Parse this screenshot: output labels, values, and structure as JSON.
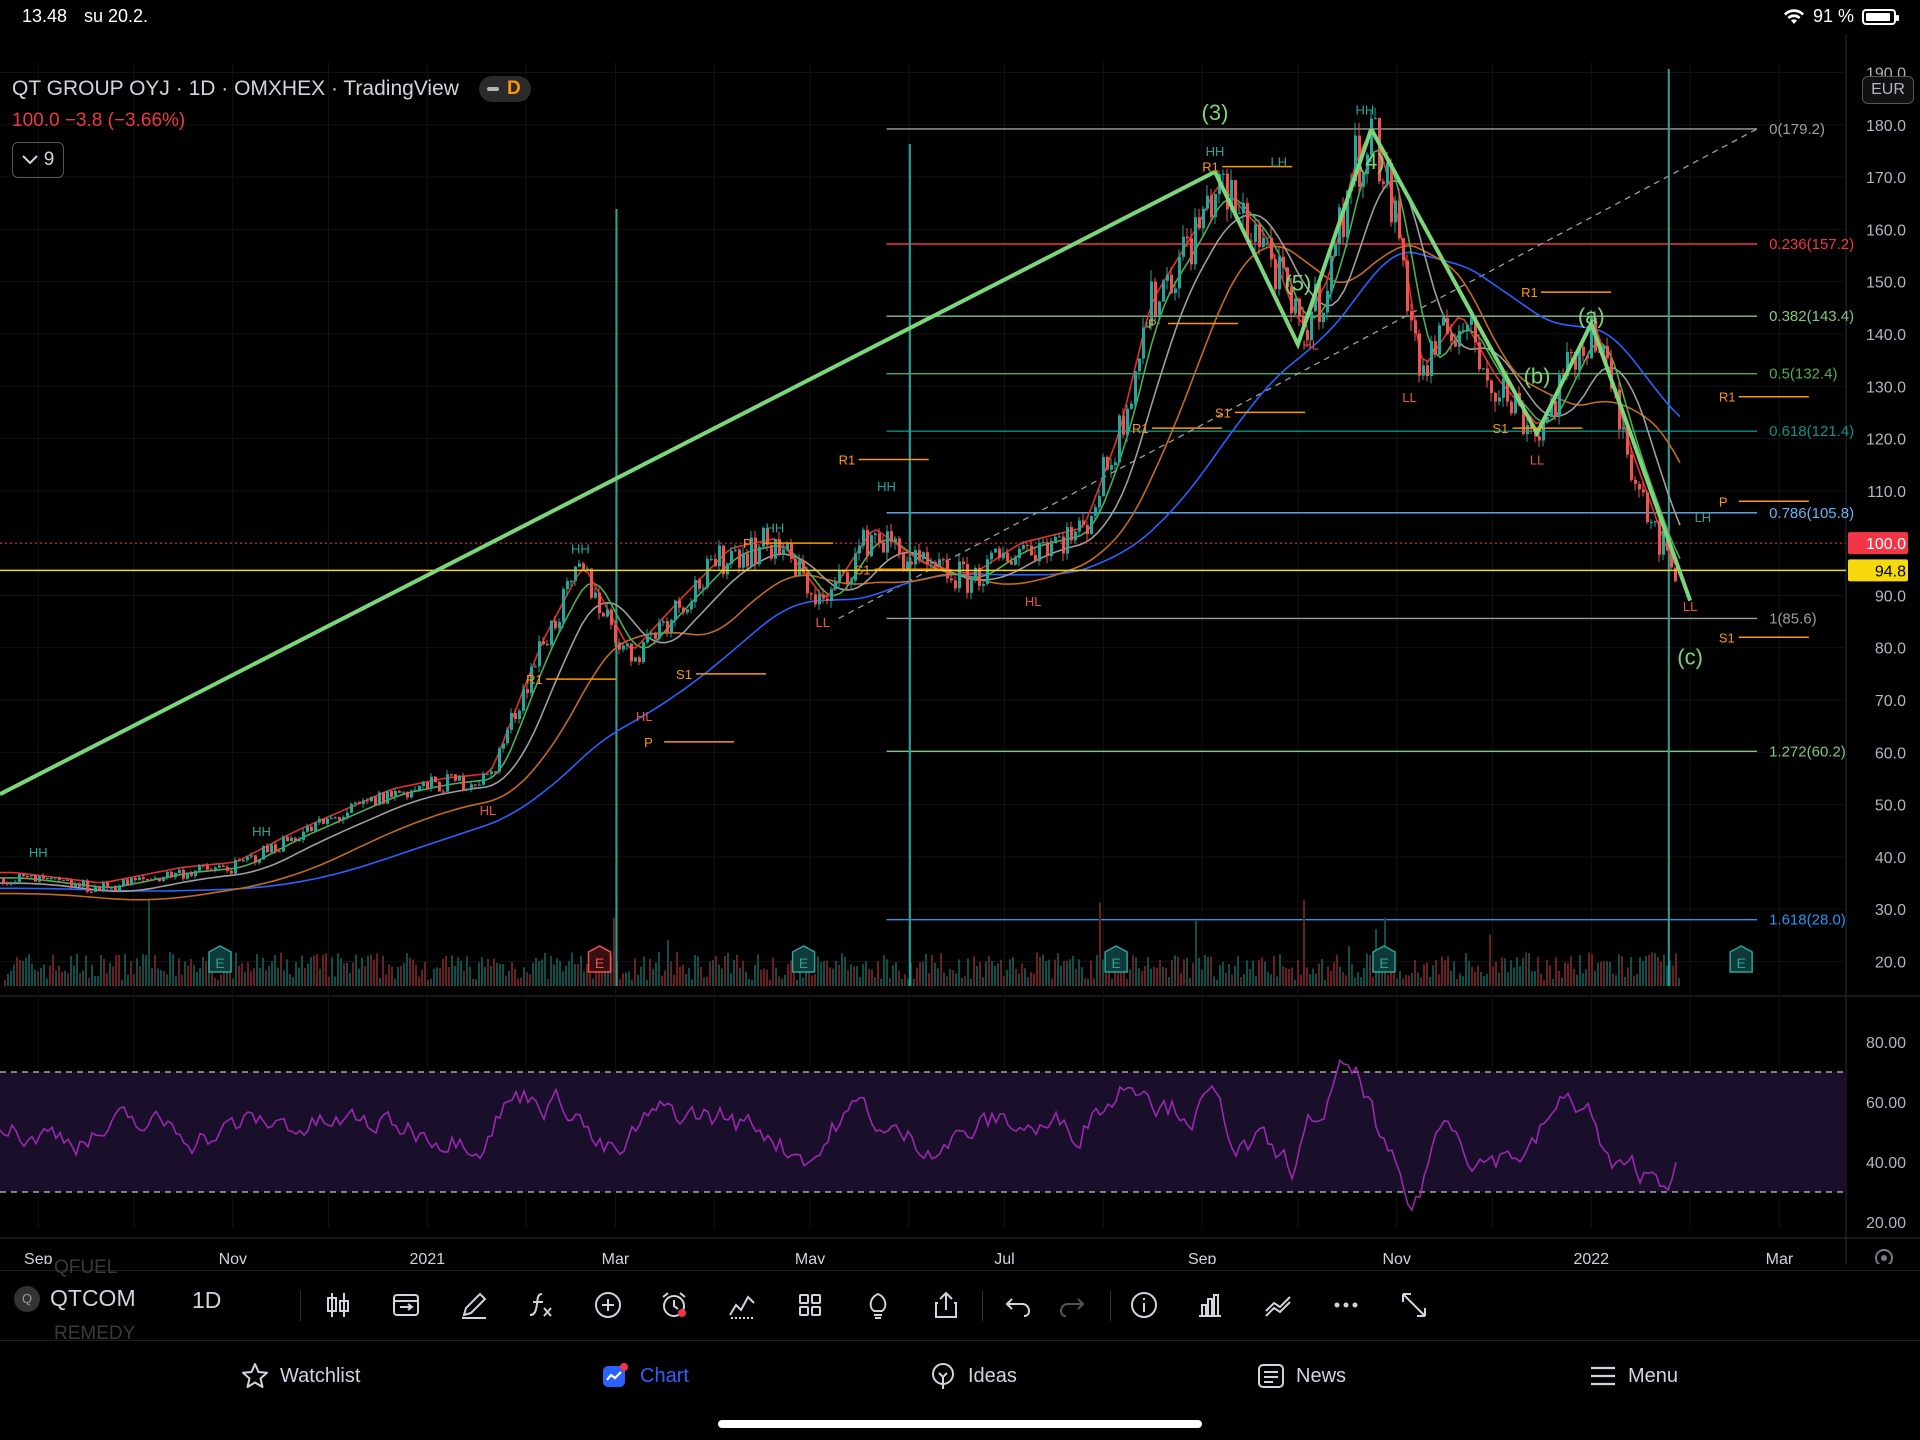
{
  "status_bar": {
    "time": "13.48",
    "date": "su 20.2.",
    "battery": "91 %",
    "battery_level": 0.91
  },
  "legend": {
    "title": "QT GROUP OYJ · 1D · OMXHEX · TradingView",
    "badge_letter": "D",
    "ohlc": "100.0  −3.8 (−3.66%)",
    "indicator_count": "9"
  },
  "currency_button": "EUR",
  "price_axis": {
    "ticks": [
      "190.0",
      "180.0",
      "170.0",
      "160.0",
      "150.0",
      "140.0",
      "130.0",
      "120.0",
      "110.0",
      "100.0",
      "90.0",
      "80.0",
      "70.0",
      "60.0",
      "50.0",
      "40.0",
      "30.0",
      "20.0"
    ],
    "current_price": "100.0",
    "line_price": "94.8"
  },
  "rsi_axis": {
    "ticks": [
      "80.00",
      "60.00",
      "40.00",
      "20.00"
    ]
  },
  "time_axis": {
    "ticks": [
      "Sep",
      "Nov",
      "2021",
      "Mar",
      "May",
      "Jul",
      "Sep",
      "Nov",
      "2022",
      "Mar"
    ]
  },
  "fib_labels": [
    "0(179.2)",
    "0.236(157.2)",
    "0.382(143.4)",
    "0.5(132.4)",
    "0.618(121.4)",
    "0.786(105.8)",
    "1(85.6)",
    "1.272(60.2)",
    "1.618(28.0)"
  ],
  "wave_labels": [
    "(3)",
    "(5)",
    "(4)",
    "(b)",
    "(a)",
    "(c)"
  ],
  "earnings_marker": "E",
  "pivot_labels": {
    "r1": "R1",
    "p": "P",
    "s1": "S1"
  },
  "structure_labels": {
    "hh": "HH",
    "hl": "HL",
    "lh": "LH",
    "ll": "LL"
  },
  "colors": {
    "background": "#000000",
    "up": "#26a69a",
    "down": "#ef5350",
    "wave": "#7bd67b",
    "ma_red": "#e0312b",
    "ma_green": "#4caf50",
    "ma_gray": "#9e9e9e",
    "ma_orange": "#c26b1a",
    "ma_blue": "#2962ff",
    "rsi": "#9c27b0",
    "price_line_yellow": "#f5d90a",
    "accent": "#2962ff"
  },
  "toolbar": {
    "ghost_above": "QFUEL",
    "symbol": "QTCOM",
    "ghost_below": "REMEDY",
    "timeframe": "1D",
    "icons": [
      "candles-icon",
      "compare-icon",
      "draw-icon",
      "indicators-icon",
      "add-icon",
      "alert-icon",
      "replay-icon",
      "layout-icon",
      "ideas-bulb-icon",
      "share-icon",
      "undo-icon",
      "redo-icon",
      "info-icon",
      "financials-icon",
      "strategy-icon",
      "more-icon",
      "fullscreen-icon"
    ]
  },
  "tabs": [
    {
      "label": "Watchlist",
      "icon": "star-icon"
    },
    {
      "label": "Chart",
      "icon": "chart-icon",
      "active": true
    },
    {
      "label": "Ideas",
      "icon": "bulb-icon"
    },
    {
      "label": "News",
      "icon": "news-icon"
    },
    {
      "label": "Menu",
      "icon": "menu-icon"
    }
  ],
  "chart_data": {
    "type": "candlestick",
    "symbol": "QT GROUP OYJ",
    "exchange": "OMXHEX",
    "interval": "1D",
    "last": 100.0,
    "change": -3.8,
    "change_pct": -3.66,
    "y_range": [
      18,
      192
    ],
    "rsi_range": [
      18,
      92
    ],
    "rsi_bands": [
      70,
      30
    ],
    "x_months": [
      "2020-09",
      "2020-10",
      "2020-11",
      "2020-12",
      "2021-01",
      "2021-02",
      "2021-03",
      "2021-04",
      "2021-05",
      "2021-06",
      "2021-07",
      "2021-08",
      "2021-09",
      "2021-10",
      "2021-11",
      "2021-12",
      "2022-01",
      "2022-02",
      "2022-03"
    ],
    "price_path": [
      [
        "2020-08-24",
        36
      ],
      [
        "2020-09-20",
        34
      ],
      [
        "2020-10-15",
        37
      ],
      [
        "2020-11-01",
        38
      ],
      [
        "2020-11-20",
        44
      ],
      [
        "2020-12-05",
        48
      ],
      [
        "2020-12-20",
        52
      ],
      [
        "2021-01-05",
        54
      ],
      [
        "2021-01-20",
        55
      ],
      [
        "2021-02-05",
        80
      ],
      [
        "2021-02-18",
        95
      ],
      [
        "2021-03-05",
        78
      ],
      [
        "2021-03-20",
        88
      ],
      [
        "2021-04-05",
        98
      ],
      [
        "2021-04-20",
        100
      ],
      [
        "2021-05-05",
        88
      ],
      [
        "2021-05-20",
        102
      ],
      [
        "2021-06-05",
        95
      ],
      [
        "2021-06-20",
        93
      ],
      [
        "2021-07-05",
        99
      ],
      [
        "2021-07-25",
        102
      ],
      [
        "2021-08-05",
        120
      ],
      [
        "2021-08-15",
        145
      ],
      [
        "2021-08-30",
        160
      ],
      [
        "2021-09-05",
        168
      ],
      [
        "2021-09-20",
        158
      ],
      [
        "2021-10-01",
        140
      ],
      [
        "2021-10-10",
        150
      ],
      [
        "2021-10-18",
        172
      ],
      [
        "2021-10-24",
        179
      ],
      [
        "2021-11-01",
        160
      ],
      [
        "2021-11-08",
        132
      ],
      [
        "2021-11-20",
        143
      ],
      [
        "2021-12-01",
        131
      ],
      [
        "2021-12-15",
        121
      ],
      [
        "2022-01-01",
        142
      ],
      [
        "2022-01-12",
        118
      ],
      [
        "2022-01-25",
        96
      ],
      [
        "2022-02-01",
        91
      ],
      [
        "2022-02-08",
        103
      ],
      [
        "2022-02-18",
        100
      ]
    ],
    "fibonacci": [
      {
        "level": "0",
        "price": 179.2
      },
      {
        "level": "0.236",
        "price": 157.2
      },
      {
        "level": "0.382",
        "price": 143.4
      },
      {
        "level": "0.5",
        "price": 132.4
      },
      {
        "level": "0.618",
        "price": 121.4
      },
      {
        "level": "0.786",
        "price": 105.8
      },
      {
        "level": "1",
        "price": 85.6
      },
      {
        "level": "1.272",
        "price": 60.2
      },
      {
        "level": "1.618",
        "price": 28.0
      }
    ],
    "horizontal_lines": [
      100.0,
      94.8
    ],
    "waves": [
      {
        "label": "(3)",
        "date": "2021-09-05",
        "price": 171
      },
      {
        "label": "(4)",
        "date": "2021-10-01",
        "price": 138
      },
      {
        "label": "(5)",
        "date": "2021-10-24",
        "price": 179.2
      },
      {
        "label": "(a)",
        "date": "2021-12-15",
        "price": 121
      },
      {
        "label": "(b)",
        "date": "2022-01-01",
        "price": 142
      },
      {
        "label": "(c)",
        "date": "2022-02-01",
        "price": 89
      }
    ],
    "earnings_dates": [
      "2020-10-28",
      "2021-02-24",
      "2021-04-29",
      "2021-08-05",
      "2021-10-28",
      "2022-02-17"
    ]
  }
}
